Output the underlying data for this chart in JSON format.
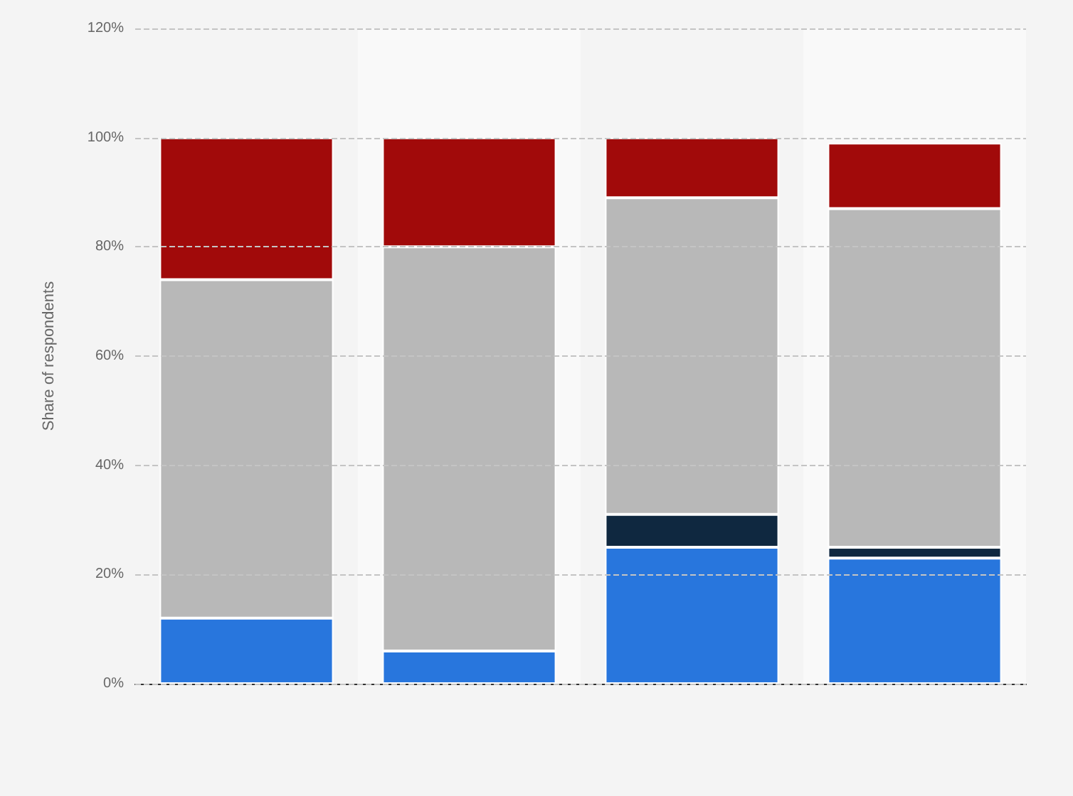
{
  "chart_data": {
    "type": "bar",
    "ylabel": "Share of respondents",
    "categories": [
      null,
      null,
      null,
      null
    ],
    "stacked": true,
    "series": [
      {
        "color": "#2876dd",
        "values": [
          12,
          6,
          25,
          23
        ]
      },
      {
        "color": "#0f2840",
        "values": [
          0,
          0,
          6,
          2
        ]
      },
      {
        "color": "#b8b8b8",
        "values": [
          62,
          74,
          58,
          62
        ]
      },
      {
        "color": "#a10a0a",
        "values": [
          26,
          20,
          11,
          12
        ]
      }
    ],
    "ylim": [
      0,
      120
    ],
    "yticks": [
      {
        "value": 0,
        "label": "0%"
      },
      {
        "value": 20,
        "label": "20%"
      },
      {
        "value": 40,
        "label": "40%"
      },
      {
        "value": 60,
        "label": "60%"
      },
      {
        "value": 80,
        "label": "80%"
      },
      {
        "value": 100,
        "label": "100%"
      },
      {
        "value": 120,
        "label": "120%"
      }
    ],
    "grid": "y"
  }
}
